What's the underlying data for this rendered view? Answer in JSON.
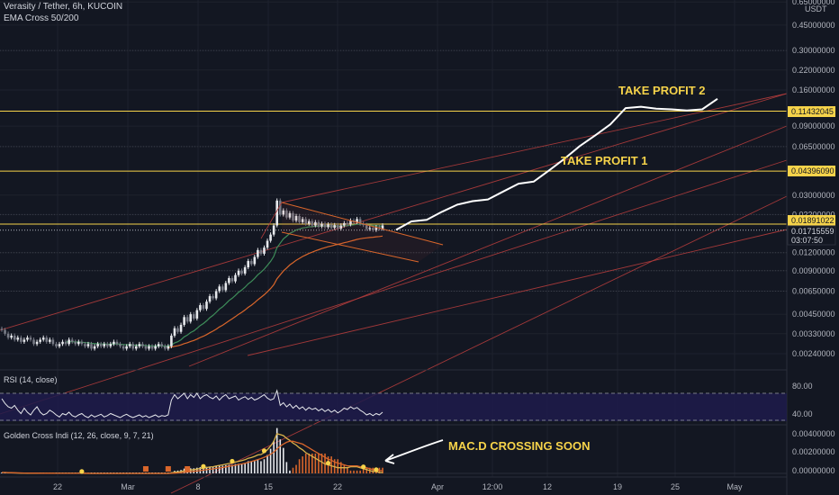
{
  "header": {
    "symbol": "Verasity / Tether, 6h, KUCOIN",
    "indicator": "EMA Cross 50/200"
  },
  "price_axis": {
    "currency": "USDT",
    "ticks": [
      "0.65000000",
      "0.45000000",
      "0.30000000",
      "0.22000000",
      "0.16000000",
      "0.09000000",
      "0.06500000",
      "0.03000000",
      "0.02200000",
      "0.01200000",
      "0.00900000",
      "0.00650000",
      "0.00450000",
      "0.00330000",
      "0.00240000"
    ],
    "tp2_label": "0.11432045",
    "tp1_label": "0.04396090",
    "last_price_label": "0.01891022",
    "ref_price_label": "0.01715559",
    "countdown_label": "03:07:50"
  },
  "time_axis": {
    "ticks": [
      "22",
      "Mar",
      "8",
      "15",
      "22",
      "Apr",
      "12:00",
      "12",
      "19",
      "25",
      "May"
    ]
  },
  "annotations": {
    "take_profit_1": "TAKE PROFIT 1",
    "take_profit_2": "TAKE PROFIT 2",
    "macd_note": "MAC.D CROSSING SOON"
  },
  "rsi_panel": {
    "title": "RSI (14, close)",
    "ticks": [
      "80.00",
      "40.00"
    ]
  },
  "macd_panel": {
    "title": "Golden Cross Indi (12, 26, close, 9, 7, 21)",
    "ticks": [
      "0.00400000",
      "0.00200000",
      "0.00000000"
    ]
  },
  "colors": {
    "background": "#131722",
    "up_candle": "#e6e8ec",
    "down_candle": "#787b86",
    "tp_line": "#f6d34a",
    "last_price": "#f6d34a",
    "channel": "#b23c3c",
    "ema_fast": "#3e8e5a",
    "ema_slow": "#d9662b",
    "macd_line": "#d9b24a",
    "signal_line": "#d9662b",
    "rsi_band": "#1e1b4b"
  },
  "chart_data": {
    "type": "candlestick",
    "scale": "log",
    "take_profit_levels": [
      0.0439609,
      0.11432045
    ],
    "last_price": 0.01891022,
    "reference_price": 0.01715559,
    "closes": [
      0.0035,
      0.0033,
      0.0031,
      0.0032,
      0.003,
      0.0031,
      0.0029,
      0.003,
      0.0031,
      0.003,
      0.0028,
      0.0029,
      0.003,
      0.0031,
      0.0029,
      0.003,
      0.0028,
      0.0027,
      0.0028,
      0.0029,
      0.0028,
      0.003,
      0.0029,
      0.0028,
      0.0029,
      0.0028,
      0.0027,
      0.0028,
      0.0026,
      0.0027,
      0.0028,
      0.0027,
      0.0028,
      0.0027,
      0.0028,
      0.0029,
      0.0028,
      0.0027,
      0.0026,
      0.0027,
      0.0028,
      0.0026,
      0.0027,
      0.0028,
      0.0027,
      0.0026,
      0.0027,
      0.0026,
      0.0027,
      0.0028,
      0.0027,
      0.0026,
      0.0027,
      0.0032,
      0.0036,
      0.0034,
      0.0038,
      0.0043,
      0.004,
      0.0045,
      0.0042,
      0.0048,
      0.0052,
      0.0049,
      0.0055,
      0.006,
      0.0058,
      0.0065,
      0.007,
      0.0066,
      0.0074,
      0.008,
      0.0076,
      0.0084,
      0.009,
      0.0086,
      0.0095,
      0.0105,
      0.01,
      0.0112,
      0.0125,
      0.0118,
      0.013,
      0.0145,
      0.016,
      0.0185,
      0.0275,
      0.022,
      0.0235,
      0.021,
      0.0225,
      0.02,
      0.0215,
      0.0195,
      0.0205,
      0.019,
      0.0198,
      0.0185,
      0.0195,
      0.0182,
      0.019,
      0.018,
      0.0188,
      0.0178,
      0.0186,
      0.0176,
      0.0185,
      0.0192,
      0.0188,
      0.02,
      0.0195,
      0.0205,
      0.019,
      0.0186,
      0.0175,
      0.0178,
      0.0172,
      0.018,
      0.0176,
      0.0185
    ],
    "projection": [
      [
        0.018,
        0.0165
      ],
      [
        0.021,
        0.0185
      ],
      [
        0.023,
        0.0175
      ],
      [
        0.026,
        0.02
      ],
      [
        0.03,
        0.0215
      ],
      [
        0.034,
        0.0205
      ],
      [
        0.032,
        0.024
      ],
      [
        0.036,
        0.0275
      ],
      [
        0.043,
        0.029
      ],
      [
        0.048,
        0.0265
      ],
      [
        0.053,
        0.036
      ],
      [
        0.06,
        0.047
      ],
      [
        0.075,
        0.056
      ],
      [
        0.085,
        0.07
      ],
      [
        0.105,
        0.08
      ],
      [
        0.125,
        0.115
      ],
      [
        0.125,
        0.12
      ],
      [
        0.118,
        0.12
      ],
      [
        0.12,
        0.115
      ],
      [
        0.115,
        0.116
      ],
      [
        0.118,
        0.117
      ],
      [
        0.16,
        0.118
      ]
    ],
    "rsi": [
      72,
      65,
      60,
      58,
      62,
      55,
      50,
      58,
      52,
      48,
      55,
      60,
      52,
      48,
      50,
      55,
      52,
      48,
      45,
      50,
      48,
      52,
      47,
      45,
      48,
      50,
      46,
      44,
      48,
      45,
      47,
      49,
      45,
      47,
      50,
      48,
      46,
      44,
      47,
      49,
      46,
      44,
      46,
      48,
      45,
      47,
      44,
      46,
      48,
      45,
      47,
      46,
      48,
      70,
      78,
      72,
      76,
      80,
      72,
      78,
      74,
      80,
      72,
      76,
      78,
      74,
      72,
      76,
      70,
      75,
      78,
      72,
      74,
      76,
      70,
      73,
      75,
      71,
      74,
      70,
      72,
      75,
      78,
      73,
      70,
      72,
      84,
      62,
      66,
      60,
      64,
      58,
      62,
      57,
      60,
      55,
      59,
      56,
      58,
      54,
      57,
      53,
      56,
      52,
      55,
      51,
      54,
      58,
      56,
      60,
      57,
      59,
      55,
      52,
      48,
      50,
      47,
      50,
      48,
      52
    ],
    "macd": [
      0.0001,
      0.0001,
      8e-05,
      6e-05,
      5e-05,
      4e-05,
      3e-05,
      3e-05,
      2e-05,
      2e-05,
      2e-05,
      2e-05,
      2e-05,
      2e-05,
      1e-05,
      1e-05,
      1e-05,
      1e-05,
      1e-05,
      1e-05,
      1e-05,
      1e-05,
      1e-05,
      1e-05,
      1e-05,
      1e-05,
      0.0,
      0.0,
      0.0,
      0.0,
      0.0,
      0.0,
      0.0,
      0.0,
      0.0,
      0.0,
      0.0,
      0.0,
      0.0,
      0.0,
      0.0,
      0.0,
      0.0,
      0.0,
      0.0,
      0.0,
      0.0,
      0.0,
      0.0,
      0.0,
      0.0,
      0.0,
      0.0,
      5e-05,
      0.00012,
      0.00015,
      0.0002,
      0.00028,
      0.0003,
      0.00036,
      0.0004,
      0.00046,
      0.00052,
      0.00055,
      0.00062,
      0.00068,
      0.0007,
      0.00078,
      0.00085,
      0.0009,
      0.00098,
      0.00105,
      0.0011,
      0.0012,
      0.00128,
      0.00135,
      0.00145,
      0.0016,
      0.00168,
      0.0018,
      0.00195,
      0.002,
      0.0022,
      0.0025,
      0.0029,
      0.0034,
      0.0042,
      0.0041,
      0.004,
      0.0037,
      0.0035,
      0.0032,
      0.003,
      0.0027,
      0.0025,
      0.0022,
      0.002,
      0.0018,
      0.0016,
      0.0014,
      0.0012,
      0.001,
      0.0009,
      0.0008,
      0.0007,
      0.0006,
      0.0006,
      0.0006,
      0.0006,
      0.0007,
      0.0007,
      0.0007,
      0.0006,
      0.0005,
      0.0004,
      0.0003,
      0.0002,
      0.0002,
      0.0001,
      0.0001
    ],
    "signal": [
      0.0001,
      0.0001,
      9e-05,
      8e-05,
      7e-05,
      6e-05,
      5e-05,
      4e-05,
      4e-05,
      3e-05,
      3e-05,
      3e-05,
      2e-05,
      2e-05,
      2e-05,
      2e-05,
      2e-05,
      1e-05,
      1e-05,
      1e-05,
      1e-05,
      1e-05,
      1e-05,
      1e-05,
      1e-05,
      1e-05,
      1e-05,
      1e-05,
      0.0,
      0.0,
      0.0,
      0.0,
      0.0,
      0.0,
      0.0,
      0.0,
      0.0,
      0.0,
      0.0,
      0.0,
      0.0,
      0.0,
      0.0,
      0.0,
      0.0,
      0.0,
      0.0,
      0.0,
      0.0,
      0.0,
      0.0,
      0.0,
      0.0,
      1e-05,
      3e-05,
      5e-05,
      8e-05,
      0.00011,
      0.00014,
      0.00018,
      0.00022,
      0.00026,
      0.0003,
      0.00034,
      0.00039,
      0.00044,
      0.00048,
      0.00053,
      0.00058,
      0.00063,
      0.00069,
      0.00075,
      0.0008,
      0.00087,
      0.00094,
      0.001,
      0.00108,
      0.00117,
      0.00126,
      0.00136,
      0.00147,
      0.00157,
      0.0017,
      0.00185,
      0.00203,
      0.00225,
      0.0026,
      0.0029,
      0.0031,
      0.0033,
      0.0034,
      0.0034,
      0.0033,
      0.0032,
      0.0031,
      0.0029,
      0.0027,
      0.0025,
      0.0023,
      0.0021,
      0.0019,
      0.0017,
      0.0015,
      0.0014,
      0.0012,
      0.0011,
      0.001,
      0.0009,
      0.0008,
      0.0008,
      0.0008,
      0.0008,
      0.0007,
      0.0007,
      0.0006,
      0.0005,
      0.0004,
      0.0004,
      0.0003,
      0.0003
    ],
    "golden_cross_markers": [
      5e-05,
      5e-05,
      5e-05,
      5e-05,
      5e-05,
      0.0007,
      0.0007,
      0.0
    ]
  }
}
